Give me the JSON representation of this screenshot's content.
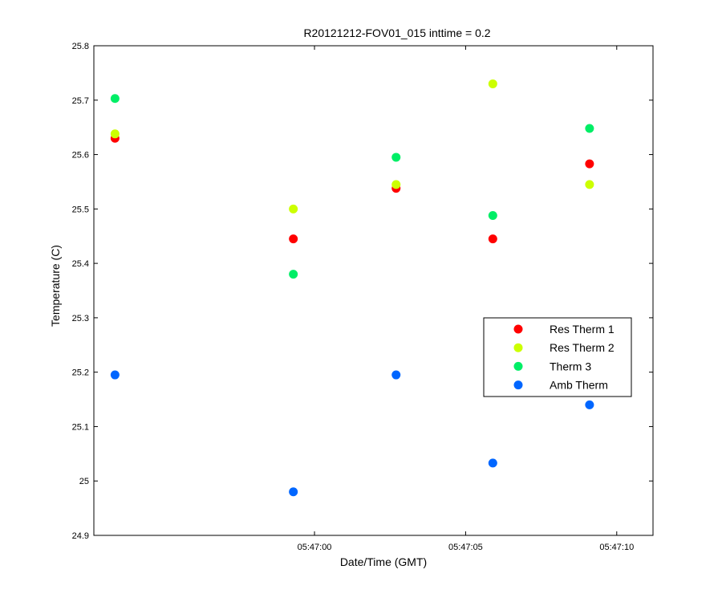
{
  "chart_data": {
    "type": "scatter",
    "title": "R20121212-FOV01_015 inttime = 0.2",
    "xlabel": "Date/Time (GMT)",
    "ylabel": "Temperature (C)",
    "xlim": [
      "05:46:52.7",
      "05:47:11.2"
    ],
    "ylim": [
      24.9,
      25.8
    ],
    "yticks": [
      24.9,
      25,
      25.1,
      25.2,
      25.3,
      25.4,
      25.5,
      25.6,
      25.7,
      25.8
    ],
    "xticks": [
      "05:47:00",
      "05:47:05",
      "05:47:10"
    ],
    "x": [
      "05:46:53.4",
      "05:46:59.3",
      "05:47:02.7",
      "05:47:05.9",
      "05:47:09.1"
    ],
    "series": [
      {
        "name": "Res Therm 1",
        "color": "#ff0000",
        "values": [
          25.63,
          25.445,
          25.538,
          25.445,
          25.583
        ]
      },
      {
        "name": "Res Therm 2",
        "color": "#ccff00",
        "values": [
          25.638,
          25.5,
          25.545,
          25.73,
          25.545
        ]
      },
      {
        "name": "Therm 3",
        "color": "#00ee66",
        "values": [
          25.703,
          25.38,
          25.595,
          25.488,
          25.648
        ]
      },
      {
        "name": "Amb Therm",
        "color": "#0066ff",
        "values": [
          25.195,
          24.98,
          25.195,
          25.033,
          25.14
        ]
      }
    ],
    "grid": false,
    "legend_position": "right"
  }
}
